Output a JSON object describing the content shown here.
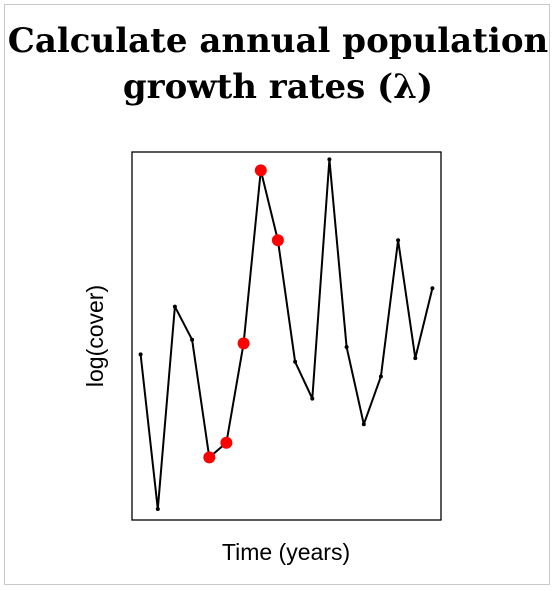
{
  "title_lines": [
    "Calculate annual population",
    "growth rates (λ)"
  ],
  "chart_data": {
    "type": "line",
    "xlabel": "Time (years)",
    "ylabel": "log(cover)",
    "xlim": [
      0.5,
      18.5
    ],
    "ylim": [
      0,
      10
    ],
    "axes_ticks": false,
    "grid": false,
    "series": [
      {
        "x": [
          1,
          2,
          3,
          4,
          5,
          6,
          7,
          8,
          9,
          10,
          11,
          12,
          13,
          14,
          15,
          16,
          17,
          18
        ],
        "y": [
          4.5,
          0.3,
          5.8,
          4.9,
          1.7,
          2.1,
          4.8,
          9.5,
          7.6,
          4.3,
          3.3,
          9.8,
          4.7,
          2.6,
          3.9,
          7.6,
          4.4,
          6.3
        ],
        "color": "#000000"
      }
    ],
    "highlighted_points": {
      "x": [
        5,
        6,
        7,
        8,
        9
      ],
      "color": "#ff0000"
    }
  }
}
